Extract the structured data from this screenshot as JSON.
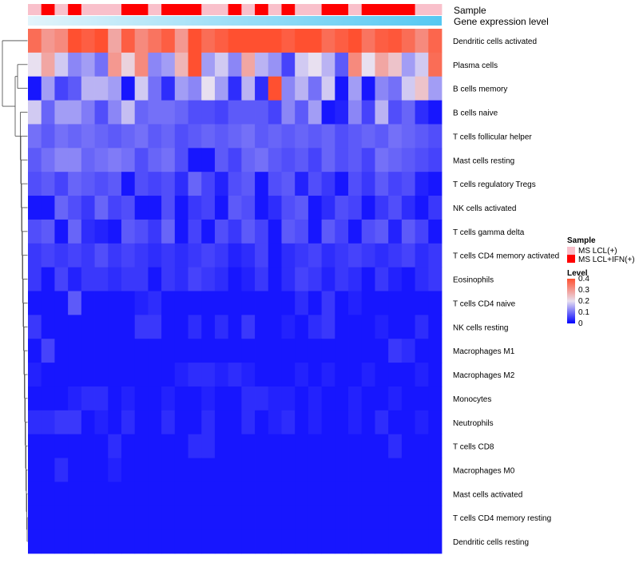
{
  "chart_data": {
    "type": "heatmap",
    "annotations": {
      "sample_label": "Sample",
      "expression_label": "Gene expression level",
      "sample_groups": [
        "LCL",
        "IFN",
        "LCL",
        "IFN",
        "LCL",
        "LCL",
        "LCL",
        "IFN",
        "IFN",
        "LCL",
        "IFN",
        "IFN",
        "IFN",
        "LCL",
        "LCL",
        "IFN",
        "LCL",
        "IFN",
        "LCL",
        "IFN",
        "LCL",
        "LCL",
        "IFN",
        "IFN",
        "LCL",
        "IFN",
        "IFN",
        "IFN",
        "IFN",
        "LCL",
        "LCL"
      ],
      "sample_colors": {
        "LCL": "#f9c0cb",
        "IFN": "#ff0000"
      },
      "expression_gradient": [
        "#e3f4fb",
        "#55c8f2"
      ]
    },
    "legend": {
      "sample_title": "Sample",
      "sample_entries": [
        {
          "label": "MS LCL(+)",
          "color": "#f9c0cb"
        },
        {
          "label": "MS LCL+IFN(+)",
          "color": "#ff0000"
        }
      ],
      "level_title": "Level",
      "level_ticks": [
        "0.4",
        "0.3",
        "0.2",
        "0.1",
        "0"
      ],
      "level_min": 0,
      "level_max": 0.4,
      "colors": {
        "low": "#0000ff",
        "mid": "#e8e0f0",
        "high": "#ff5030"
      }
    },
    "rows": [
      {
        "label": "Dendritic cells activated",
        "values": [
          0.36,
          0.3,
          0.32,
          0.4,
          0.38,
          0.4,
          0.28,
          0.38,
          0.32,
          0.35,
          0.38,
          0.3,
          0.4,
          0.36,
          0.38,
          0.4,
          0.4,
          0.4,
          0.4,
          0.38,
          0.4,
          0.4,
          0.36,
          0.38,
          0.4,
          0.35,
          0.38,
          0.39,
          0.36,
          0.32,
          0.37
        ]
      },
      {
        "label": "Plasma cells",
        "values": [
          0.2,
          0.28,
          0.18,
          0.12,
          0.14,
          0.1,
          0.3,
          0.22,
          0.32,
          0.12,
          0.14,
          0.26,
          0.4,
          0.14,
          0.18,
          0.12,
          0.28,
          0.16,
          0.13,
          0.06,
          0.18,
          0.2,
          0.16,
          0.08,
          0.32,
          0.2,
          0.28,
          0.24,
          0.14,
          0.18,
          0.36
        ]
      },
      {
        "label": "B cells memory",
        "values": [
          0.02,
          0.14,
          0.06,
          0.08,
          0.16,
          0.16,
          0.14,
          0.02,
          0.18,
          0.1,
          0.04,
          0.14,
          0.12,
          0.2,
          0.14,
          0.04,
          0.16,
          0.04,
          0.4,
          0.12,
          0.16,
          0.1,
          0.18,
          0.02,
          0.14,
          0.02,
          0.12,
          0.1,
          0.18,
          0.24,
          0.14
        ]
      },
      {
        "label": "B cells naive",
        "values": [
          0.18,
          0.09,
          0.14,
          0.14,
          0.11,
          0.07,
          0.12,
          0.17,
          0.09,
          0.1,
          0.1,
          0.09,
          0.07,
          0.07,
          0.06,
          0.08,
          0.08,
          0.08,
          0.06,
          0.12,
          0.08,
          0.14,
          0.02,
          0.03,
          0.12,
          0.06,
          0.16,
          0.07,
          0.09,
          0.04,
          0.02
        ]
      },
      {
        "label": "T cells follicular helper",
        "values": [
          0.1,
          0.08,
          0.1,
          0.09,
          0.1,
          0.09,
          0.08,
          0.09,
          0.1,
          0.08,
          0.09,
          0.07,
          0.08,
          0.09,
          0.08,
          0.09,
          0.1,
          0.08,
          0.09,
          0.08,
          0.09,
          0.08,
          0.09,
          0.07,
          0.08,
          0.09,
          0.08,
          0.1,
          0.09,
          0.08,
          0.07
        ]
      },
      {
        "label": "Mast cells resting",
        "values": [
          0.08,
          0.1,
          0.12,
          0.12,
          0.09,
          0.1,
          0.11,
          0.1,
          0.07,
          0.09,
          0.1,
          0.07,
          0.02,
          0.02,
          0.08,
          0.06,
          0.09,
          0.1,
          0.08,
          0.07,
          0.08,
          0.06,
          0.09,
          0.07,
          0.08,
          0.06,
          0.1,
          0.09,
          0.08,
          0.07,
          0.06
        ]
      },
      {
        "label": "T cells regulatory  Tregs",
        "values": [
          0.07,
          0.08,
          0.06,
          0.09,
          0.08,
          0.07,
          0.08,
          0.02,
          0.07,
          0.06,
          0.07,
          0.04,
          0.09,
          0.06,
          0.03,
          0.07,
          0.08,
          0.02,
          0.07,
          0.08,
          0.03,
          0.07,
          0.05,
          0.02,
          0.07,
          0.05,
          0.08,
          0.06,
          0.07,
          0.03,
          0.02
        ]
      },
      {
        "label": "NK cells activated",
        "values": [
          0.02,
          0.02,
          0.09,
          0.07,
          0.05,
          0.09,
          0.06,
          0.07,
          0.02,
          0.02,
          0.07,
          0.02,
          0.05,
          0.06,
          0.02,
          0.08,
          0.07,
          0.02,
          0.04,
          0.07,
          0.08,
          0.02,
          0.04,
          0.07,
          0.06,
          0.02,
          0.05,
          0.07,
          0.04,
          0.02,
          0.05
        ]
      },
      {
        "label": "T cells gamma delta",
        "values": [
          0.07,
          0.08,
          0.02,
          0.09,
          0.04,
          0.03,
          0.02,
          0.08,
          0.07,
          0.05,
          0.09,
          0.02,
          0.06,
          0.02,
          0.07,
          0.05,
          0.08,
          0.06,
          0.02,
          0.08,
          0.07,
          0.02,
          0.08,
          0.06,
          0.02,
          0.07,
          0.08,
          0.03,
          0.08,
          0.06,
          0.02
        ]
      },
      {
        "label": "T cells CD4 memory activated",
        "values": [
          0.05,
          0.06,
          0.05,
          0.06,
          0.05,
          0.07,
          0.05,
          0.06,
          0.05,
          0.04,
          0.05,
          0.04,
          0.05,
          0.06,
          0.05,
          0.03,
          0.04,
          0.06,
          0.02,
          0.04,
          0.05,
          0.06,
          0.04,
          0.05,
          0.06,
          0.05,
          0.04,
          0.05,
          0.06,
          0.04,
          0.05
        ]
      },
      {
        "label": "Eosinophils",
        "values": [
          0.05,
          0.02,
          0.06,
          0.03,
          0.05,
          0.05,
          0.04,
          0.05,
          0.05,
          0.02,
          0.05,
          0.04,
          0.06,
          0.05,
          0.04,
          0.02,
          0.03,
          0.05,
          0.02,
          0.04,
          0.06,
          0.05,
          0.03,
          0.05,
          0.04,
          0.02,
          0.05,
          0.03,
          0.02,
          0.04,
          0.05
        ]
      },
      {
        "label": "T cells CD4 naive",
        "values": [
          0.02,
          0.02,
          0.02,
          0.08,
          0.02,
          0.02,
          0.02,
          0.02,
          0.03,
          0.04,
          0.02,
          0.02,
          0.02,
          0.02,
          0.02,
          0.02,
          0.02,
          0.02,
          0.02,
          0.02,
          0.04,
          0.02,
          0.05,
          0.02,
          0.03,
          0.02,
          0.02,
          0.02,
          0.02,
          0.02,
          0.02
        ]
      },
      {
        "label": "NK cells resting",
        "values": [
          0.05,
          0.02,
          0.02,
          0.02,
          0.02,
          0.02,
          0.02,
          0.02,
          0.05,
          0.05,
          0.02,
          0.02,
          0.04,
          0.02,
          0.04,
          0.02,
          0.05,
          0.02,
          0.02,
          0.03,
          0.02,
          0.04,
          0.05,
          0.02,
          0.02,
          0.02,
          0.03,
          0.02,
          0.02,
          0.04,
          0.02
        ]
      },
      {
        "label": "Macrophages M1",
        "values": [
          0.02,
          0.06,
          0.02,
          0.02,
          0.02,
          0.02,
          0.02,
          0.02,
          0.02,
          0.02,
          0.02,
          0.02,
          0.02,
          0.02,
          0.02,
          0.02,
          0.02,
          0.02,
          0.02,
          0.02,
          0.02,
          0.02,
          0.02,
          0.02,
          0.02,
          0.02,
          0.02,
          0.05,
          0.04,
          0.02,
          0.02
        ]
      },
      {
        "label": "Macrophages M2",
        "values": [
          0.03,
          0.02,
          0.02,
          0.02,
          0.02,
          0.02,
          0.02,
          0.02,
          0.02,
          0.02,
          0.02,
          0.03,
          0.04,
          0.04,
          0.03,
          0.04,
          0.03,
          0.02,
          0.02,
          0.02,
          0.03,
          0.02,
          0.03,
          0.02,
          0.02,
          0.03,
          0.02,
          0.02,
          0.02,
          0.03,
          0.02
        ]
      },
      {
        "label": "Monocytes",
        "values": [
          0.02,
          0.02,
          0.02,
          0.03,
          0.04,
          0.04,
          0.02,
          0.03,
          0.02,
          0.02,
          0.03,
          0.02,
          0.02,
          0.03,
          0.02,
          0.02,
          0.04,
          0.04,
          0.03,
          0.03,
          0.02,
          0.03,
          0.02,
          0.02,
          0.03,
          0.02,
          0.02,
          0.03,
          0.02,
          0.02,
          0.02
        ]
      },
      {
        "label": "Neutrophils",
        "values": [
          0.04,
          0.04,
          0.05,
          0.05,
          0.02,
          0.03,
          0.02,
          0.04,
          0.02,
          0.02,
          0.04,
          0.02,
          0.02,
          0.04,
          0.02,
          0.02,
          0.04,
          0.02,
          0.03,
          0.04,
          0.02,
          0.03,
          0.02,
          0.02,
          0.03,
          0.02,
          0.04,
          0.02,
          0.02,
          0.03,
          0.02
        ]
      },
      {
        "label": "T cells CD8",
        "values": [
          0.02,
          0.02,
          0.02,
          0.02,
          0.02,
          0.02,
          0.04,
          0.02,
          0.02,
          0.02,
          0.02,
          0.02,
          0.04,
          0.04,
          0.02,
          0.02,
          0.02,
          0.02,
          0.02,
          0.02,
          0.02,
          0.02,
          0.02,
          0.02,
          0.02,
          0.02,
          0.02,
          0.04,
          0.02,
          0.02,
          0.02
        ]
      },
      {
        "label": "Macrophages M0",
        "values": [
          0.02,
          0.02,
          0.04,
          0.02,
          0.02,
          0.02,
          0.03,
          0.02,
          0.02,
          0.02,
          0.02,
          0.02,
          0.02,
          0.02,
          0.02,
          0.02,
          0.02,
          0.02,
          0.02,
          0.02,
          0.02,
          0.02,
          0.02,
          0.02,
          0.02,
          0.02,
          0.02,
          0.02,
          0.02,
          0.02,
          0.02
        ]
      },
      {
        "label": "Mast cells activated",
        "values": [
          0.02,
          0.02,
          0.02,
          0.02,
          0.02,
          0.02,
          0.02,
          0.02,
          0.02,
          0.02,
          0.02,
          0.02,
          0.02,
          0.02,
          0.02,
          0.02,
          0.02,
          0.02,
          0.02,
          0.02,
          0.02,
          0.02,
          0.02,
          0.02,
          0.02,
          0.02,
          0.02,
          0.02,
          0.02,
          0.02,
          0.02
        ]
      },
      {
        "label": "T cells CD4 memory resting",
        "values": [
          0.02,
          0.02,
          0.02,
          0.02,
          0.02,
          0.02,
          0.02,
          0.02,
          0.02,
          0.02,
          0.02,
          0.02,
          0.02,
          0.02,
          0.02,
          0.02,
          0.02,
          0.02,
          0.02,
          0.02,
          0.02,
          0.02,
          0.02,
          0.02,
          0.02,
          0.02,
          0.02,
          0.02,
          0.02,
          0.02,
          0.02
        ]
      },
      {
        "label": "Dendritic cells resting",
        "values": [
          0.02,
          0.02,
          0.02,
          0.02,
          0.02,
          0.02,
          0.02,
          0.02,
          0.02,
          0.02,
          0.02,
          0.02,
          0.02,
          0.02,
          0.02,
          0.02,
          0.02,
          0.02,
          0.02,
          0.02,
          0.02,
          0.02,
          0.02,
          0.02,
          0.02,
          0.02,
          0.02,
          0.02,
          0.02,
          0.02,
          0.02
        ]
      }
    ]
  }
}
